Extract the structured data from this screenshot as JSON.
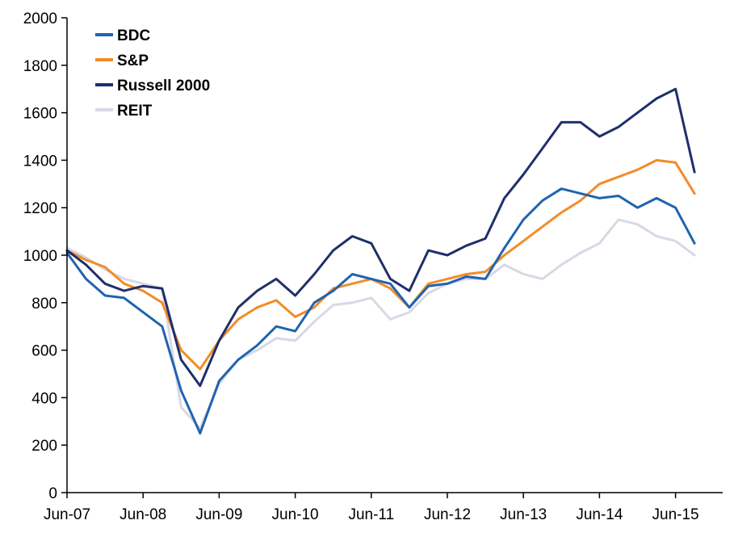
{
  "chart_data": {
    "type": "line",
    "title": "",
    "xlabel": "",
    "ylabel": "",
    "ylim": [
      0,
      2000
    ],
    "yticks": [
      "0",
      "200",
      "400",
      "600",
      "800",
      "1000",
      "1200",
      "1400",
      "1600",
      "1800",
      "2000"
    ],
    "xtick_labels": [
      "Jun-07",
      "Jun-08",
      "Jun-09",
      "Jun-10",
      "Jun-11",
      "Jun-12",
      "Jun-13",
      "Jun-14",
      "Jun-15"
    ],
    "x": [
      "2007-06",
      "2007-09",
      "2007-12",
      "2008-03",
      "2008-06",
      "2008-09",
      "2008-12",
      "2009-03",
      "2009-06",
      "2009-09",
      "2009-12",
      "2010-03",
      "2010-06",
      "2010-09",
      "2010-12",
      "2011-03",
      "2011-06",
      "2011-09",
      "2011-12",
      "2012-03",
      "2012-06",
      "2012-09",
      "2012-12",
      "2013-03",
      "2013-06",
      "2013-09",
      "2013-12",
      "2014-03",
      "2014-06",
      "2014-09",
      "2014-12",
      "2015-03",
      "2015-06",
      "2015-09"
    ],
    "legend": "top-left",
    "grid": false,
    "series": [
      {
        "name": "BDC",
        "color": "#1f64b0",
        "values": [
          1010,
          900,
          830,
          820,
          760,
          700,
          430,
          250,
          470,
          560,
          620,
          700,
          680,
          800,
          850,
          920,
          900,
          880,
          780,
          870,
          880,
          910,
          900,
          1030,
          1150,
          1230,
          1280,
          1260,
          1240,
          1250,
          1200,
          1240,
          1200,
          1050
        ]
      },
      {
        "name": "S&P",
        "color": "#f28c28",
        "values": [
          1020,
          980,
          950,
          880,
          850,
          800,
          600,
          520,
          640,
          730,
          780,
          810,
          740,
          780,
          860,
          880,
          900,
          860,
          780,
          880,
          900,
          920,
          930,
          1000,
          1060,
          1120,
          1180,
          1230,
          1300,
          1330,
          1360,
          1400,
          1390,
          1260
        ]
      },
      {
        "name": "Russell 2000",
        "color": "#1f2f6b",
        "values": [
          1020,
          960,
          880,
          850,
          870,
          860,
          560,
          450,
          640,
          780,
          850,
          900,
          830,
          920,
          1020,
          1080,
          1050,
          900,
          850,
          1020,
          1000,
          1040,
          1070,
          1240,
          1340,
          1450,
          1560,
          1560,
          1500,
          1540,
          1600,
          1660,
          1700,
          1350
        ]
      },
      {
        "name": "REIT",
        "color": "#d8d8e6",
        "values": [
          1030,
          990,
          940,
          900,
          880,
          860,
          360,
          270,
          460,
          560,
          600,
          650,
          640,
          720,
          790,
          800,
          820,
          730,
          760,
          840,
          880,
          900,
          900,
          960,
          920,
          900,
          960,
          1010,
          1050,
          1150,
          1130,
          1080,
          1060,
          1000
        ]
      }
    ]
  }
}
